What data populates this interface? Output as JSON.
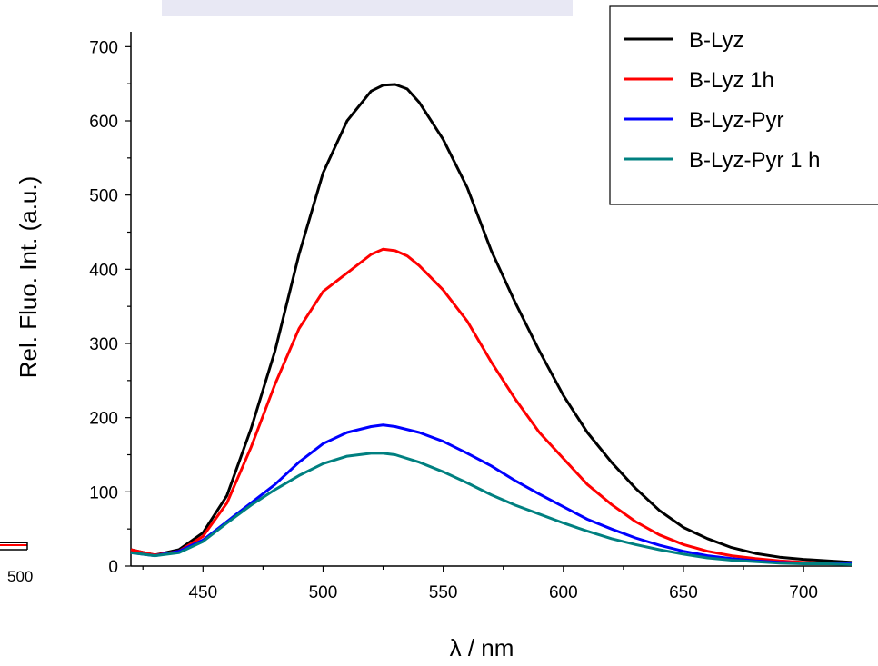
{
  "chart_data": {
    "type": "line",
    "xlabel": "λ / nm",
    "ylabel": "Rel. Fluo. Int. (a.u.)",
    "xlim": [
      420,
      720
    ],
    "ylim": [
      0,
      720
    ],
    "xticks": [
      450,
      500,
      550,
      600,
      650,
      700
    ],
    "yticks": [
      0,
      100,
      200,
      300,
      400,
      500,
      600,
      700
    ],
    "grid": false,
    "legend_position": "top-right",
    "series": [
      {
        "name": "B-Lyz",
        "color": "#000000",
        "x": [
          420,
          430,
          440,
          450,
          460,
          470,
          480,
          490,
          500,
          510,
          520,
          525,
          530,
          535,
          540,
          550,
          560,
          570,
          580,
          590,
          600,
          610,
          620,
          630,
          640,
          650,
          660,
          670,
          680,
          690,
          700,
          710,
          720
        ],
        "values": [
          22,
          15,
          22,
          45,
          95,
          185,
          290,
          420,
          530,
          600,
          640,
          648,
          649,
          643,
          625,
          575,
          510,
          425,
          355,
          290,
          230,
          180,
          140,
          105,
          75,
          52,
          37,
          25,
          17,
          12,
          9,
          7,
          5
        ]
      },
      {
        "name": "B-Lyz 1h",
        "color": "#ff0000",
        "x": [
          420,
          430,
          440,
          450,
          460,
          470,
          480,
          490,
          500,
          510,
          520,
          525,
          530,
          535,
          540,
          550,
          560,
          570,
          580,
          590,
          600,
          610,
          620,
          630,
          640,
          650,
          660,
          670,
          680,
          690,
          700,
          710,
          720
        ],
        "values": [
          22,
          15,
          20,
          40,
          85,
          160,
          245,
          320,
          370,
          395,
          420,
          427,
          425,
          418,
          405,
          372,
          330,
          275,
          225,
          180,
          145,
          110,
          83,
          60,
          42,
          29,
          20,
          14,
          10,
          7,
          5,
          4,
          3
        ]
      },
      {
        "name": "B-Lyz-Pyr",
        "color": "#0000ff",
        "x": [
          420,
          430,
          440,
          450,
          460,
          470,
          480,
          490,
          500,
          510,
          520,
          525,
          530,
          540,
          550,
          560,
          570,
          580,
          590,
          600,
          610,
          620,
          630,
          640,
          650,
          660,
          670,
          680,
          690,
          700,
          710,
          720
        ],
        "values": [
          18,
          14,
          20,
          35,
          60,
          85,
          110,
          140,
          165,
          180,
          188,
          190,
          188,
          180,
          168,
          152,
          135,
          115,
          97,
          80,
          63,
          50,
          38,
          28,
          20,
          14,
          10,
          7,
          5,
          4,
          3,
          3
        ]
      },
      {
        "name": "B-Lyz-Pyr 1 h",
        "color": "#008080",
        "x": [
          420,
          430,
          440,
          450,
          460,
          470,
          480,
          490,
          500,
          510,
          520,
          525,
          530,
          540,
          550,
          560,
          570,
          580,
          590,
          600,
          610,
          620,
          630,
          640,
          650,
          660,
          670,
          680,
          690,
          700,
          710,
          720
        ],
        "values": [
          18,
          14,
          18,
          33,
          58,
          82,
          103,
          122,
          138,
          148,
          152,
          152,
          150,
          140,
          127,
          112,
          96,
          82,
          70,
          58,
          47,
          37,
          29,
          22,
          16,
          11,
          8,
          6,
          4,
          3,
          3,
          2
        ]
      }
    ]
  },
  "ui": {
    "left_edge_tick": "500"
  }
}
